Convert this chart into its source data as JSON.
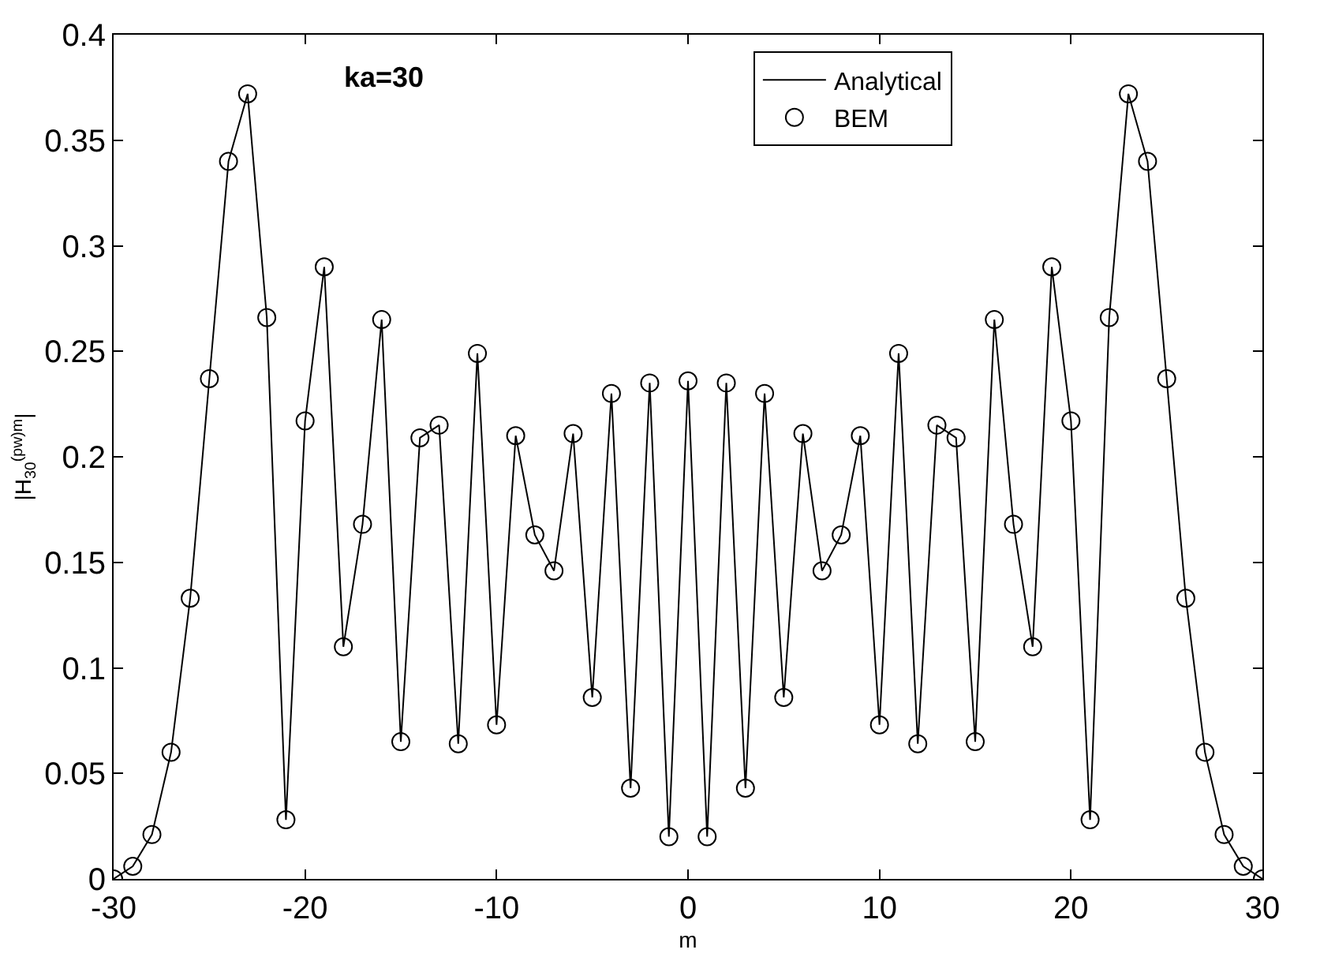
{
  "chart_data": {
    "type": "line",
    "xlabel": "m",
    "ylabel": "|H$_{30}$$^{(pw)m}$|",
    "annotations": [
      "ka=30"
    ],
    "x": [
      -30,
      -29,
      -28,
      -27,
      -26,
      -25,
      -24,
      -23,
      -22,
      -21,
      -20,
      -19,
      -18,
      -17,
      -16,
      -15,
      -14,
      -13,
      -12,
      -11,
      -10,
      -9,
      -8,
      -7,
      -6,
      -5,
      -4,
      -3,
      -2,
      -1,
      0,
      1,
      2,
      3,
      4,
      5,
      6,
      7,
      8,
      9,
      10,
      11,
      12,
      13,
      14,
      15,
      16,
      17,
      18,
      19,
      20,
      21,
      22,
      23,
      24,
      25,
      26,
      27,
      28,
      29,
      30
    ],
    "series": [
      {
        "name": "Analytical",
        "color": "#000000",
        "marker": "none",
        "line_style": "solid",
        "values": [
          0.0,
          0.006,
          0.021,
          0.06,
          0.133,
          0.237,
          0.34,
          0.372,
          0.266,
          0.028,
          0.217,
          0.29,
          0.11,
          0.168,
          0.265,
          0.065,
          0.209,
          0.215,
          0.064,
          0.249,
          0.073,
          0.21,
          0.163,
          0.146,
          0.211,
          0.086,
          0.23,
          0.043,
          0.235,
          0.02,
          0.236,
          0.02,
          0.235,
          0.043,
          0.23,
          0.086,
          0.211,
          0.146,
          0.163,
          0.21,
          0.073,
          0.249,
          0.064,
          0.215,
          0.209,
          0.065,
          0.265,
          0.168,
          0.11,
          0.29,
          0.217,
          0.028,
          0.266,
          0.372,
          0.34,
          0.237,
          0.133,
          0.06,
          0.021,
          0.006,
          0.0
        ]
      },
      {
        "name": "BEM",
        "type": "scatter",
        "color": "#000000",
        "marker": "circle",
        "values": [
          0.0,
          0.006,
          0.021,
          0.06,
          0.133,
          0.237,
          0.34,
          0.372,
          0.266,
          0.028,
          0.217,
          0.29,
          0.11,
          0.168,
          0.265,
          0.065,
          0.209,
          0.215,
          0.064,
          0.249,
          0.073,
          0.21,
          0.163,
          0.146,
          0.211,
          0.086,
          0.23,
          0.043,
          0.235,
          0.02,
          0.236,
          0.02,
          0.235,
          0.043,
          0.23,
          0.086,
          0.211,
          0.146,
          0.163,
          0.21,
          0.073,
          0.249,
          0.064,
          0.215,
          0.209,
          0.065,
          0.265,
          0.168,
          0.11,
          0.29,
          0.217,
          0.028,
          0.266,
          0.372,
          0.34,
          0.237,
          0.133,
          0.06,
          0.021,
          0.006,
          0.0
        ]
      }
    ],
    "xlim": [
      -30,
      30
    ],
    "xticks": [
      -30,
      -20,
      -10,
      0,
      10,
      20,
      30
    ],
    "ylim": [
      0,
      0.4
    ],
    "yticks": [
      0,
      0.05,
      0.1,
      0.15,
      0.2,
      0.25,
      0.3,
      0.35,
      0.4
    ],
    "legend": "top right"
  }
}
